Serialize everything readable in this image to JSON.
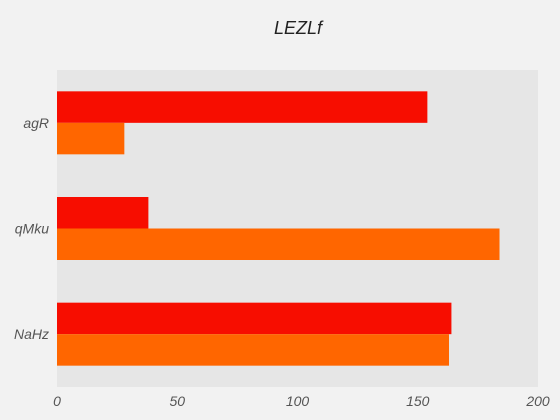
{
  "chart_data": {
    "type": "bar",
    "orientation": "horizontal",
    "title": "LEZLf",
    "xlabel": "",
    "ylabel": "",
    "categories": [
      "agR",
      "qMku",
      "NaHz"
    ],
    "series": [
      {
        "values": [
          154,
          38,
          164
        ],
        "color": "#f70d00"
      },
      {
        "values": [
          28,
          184,
          163
        ],
        "color": "#ff6600"
      }
    ],
    "xlim": [
      0,
      200
    ],
    "xticks": [
      0,
      50,
      100,
      150,
      200
    ],
    "grid": false,
    "legend": "none",
    "plot_background": "#e6e6e6",
    "page_background": "#f2f2f2"
  }
}
